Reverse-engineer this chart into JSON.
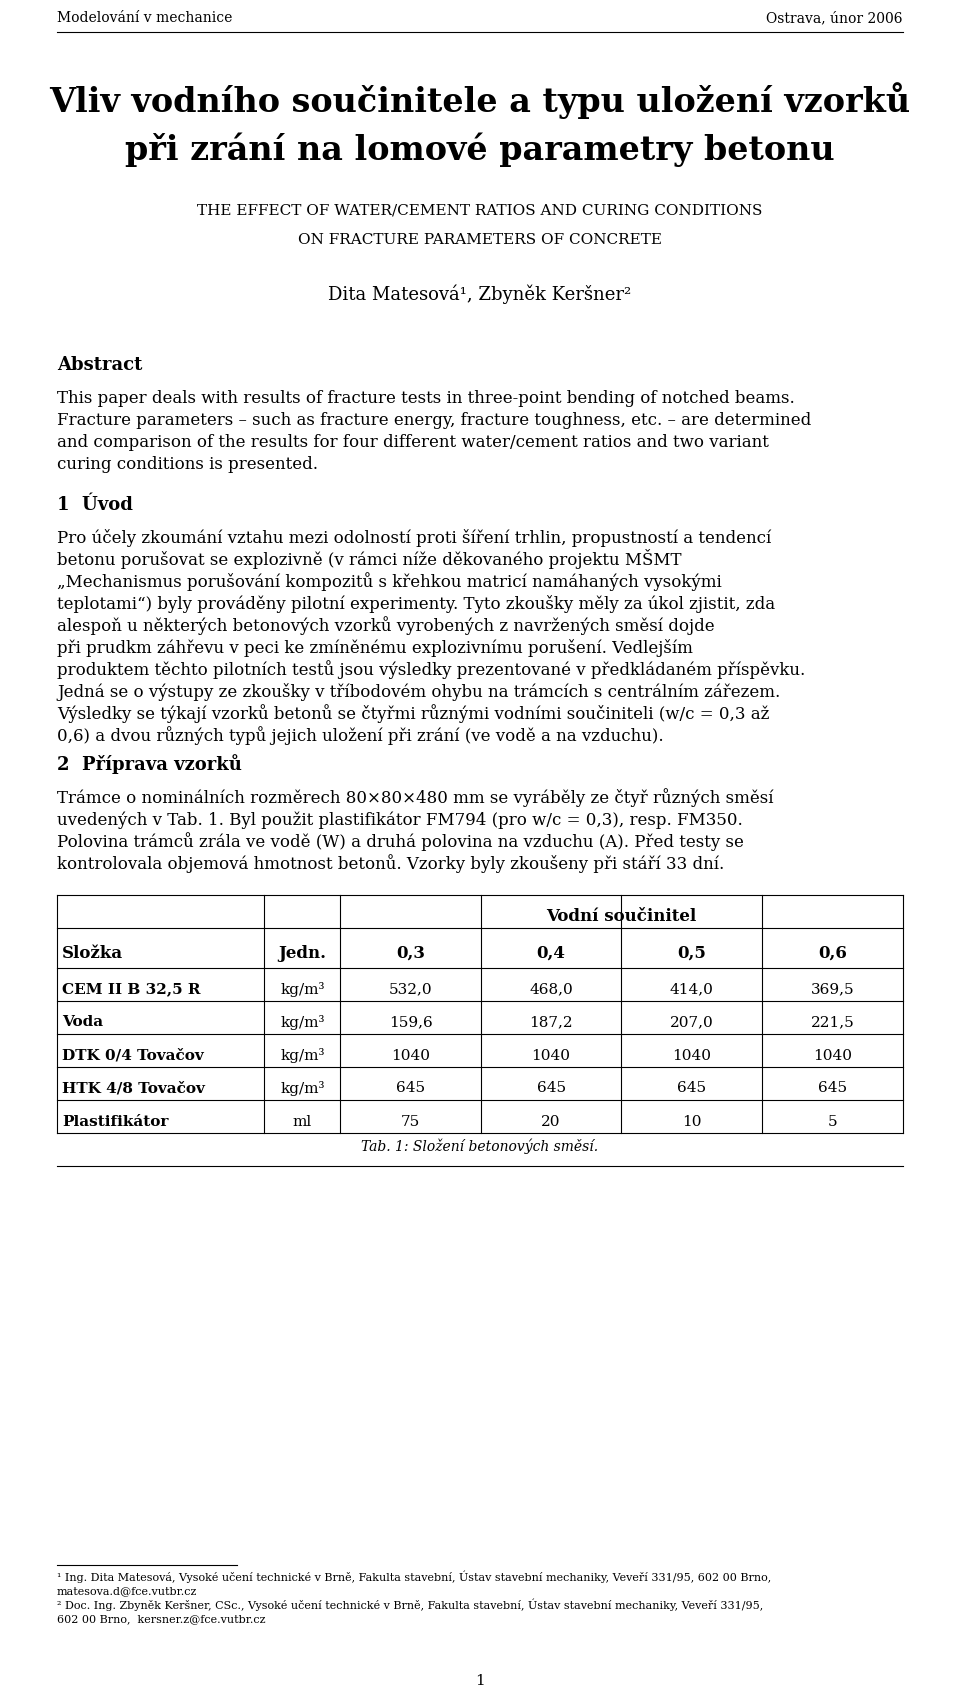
{
  "header_left": "Modelování v mechanice",
  "header_right": "Ostrava, únor 2006",
  "title_line1": "Vliv vodního součinitele a typu uložení vzorků",
  "title_line2": "při zrání na lomové parametry betonu",
  "subtitle_line1": "The effect of water/cement ratios and curing conditions",
  "subtitle_line2": "on fracture parameters of concrete",
  "authors": "Dita Matesová¹, Zbyněk Keršner²",
  "abstract_title": "Abstract",
  "abstract_lines": [
    "This paper deals with results of fracture tests in three-point bending of notched beams.",
    "Fracture parameters – such as fracture energy, fracture toughness, etc. – are determined",
    "and comparison of the results for four different water/cement ratios and two variant",
    "curing conditions is presented."
  ],
  "section1_title": "1  Úvod",
  "section1_lines": [
    "Pro účely zkoumání vztahu mezi odolností proti šíření trhlin, propustností a tendencí",
    "betonu porušovat se explozivně (v rámci níže děkovaného projektu MŠMT",
    "„Mechanismus porušování kompozitů s křehkou matricí namáhaných vysokými",
    "teplotami“) byly prováděny pilotní experimenty. Tyto zkoušky měly za úkol zjistit, zda",
    "alespoň u některých betonových vzorků vyrobených z navržených směsí dojde",
    "při prudkm záhřevu v peci ke zmíněnému explozivnímu porušení. Vedlejším",
    "produktem těchto pilotních testů jsou výsledky prezentované v předkládaném příspěvku.",
    "Jedná se o výstupy ze zkoušky v tříbodovém ohybu na trámcích s centrálním zářezem.",
    "Výsledky se týkají vzorků betonů se čtyřmi různými vodními součiniteli (w/c = 0,3 až",
    "0,6) a dvou různých typů jejich uložení při zrání (ve vodě a na vzduchu)."
  ],
  "section2_title": "2  Příprava vzorků",
  "section2_lines": [
    "Trámce o nominálních rozměrech 80×80×480 mm se vyráběly ze čtyř různých směsí",
    "uvedených v Tab. 1. Byl použit plastifikátor FM794 (pro w/c = 0,3), resp. FM350.",
    "Polovina trámců zrála ve vodě (W) a druhá polovina na vzduchu (A). Před testy se",
    "kontrolovala objemová hmotnost betonů. Vzorky byly zkoušeny při stáří 33 dní."
  ],
  "table_header_main": "Vodní součinitel",
  "table_col_headers": [
    "Složka",
    "Jedn.",
    "0,3",
    "0,4",
    "0,5",
    "0,6"
  ],
  "table_rows": [
    [
      "CEM II B 32,5 R",
      "kg/m³",
      "532,0",
      "468,0",
      "414,0",
      "369,5"
    ],
    [
      "Voda",
      "kg/m³",
      "159,6",
      "187,2",
      "207,0",
      "221,5"
    ],
    [
      "DTK 0/4 Tovačov",
      "kg/m³",
      "1040",
      "1040",
      "1040",
      "1040"
    ],
    [
      "HTK 4/8 Tovačov",
      "kg/m³",
      "645",
      "645",
      "645",
      "645"
    ],
    [
      "Plastifikátor",
      "ml",
      "75",
      "20",
      "10",
      "5"
    ]
  ],
  "table_caption": "Tab. 1: Složení betonových směsí.",
  "footnote1_line1": "¹ Ing. Dita Matesová, Vysoké učení technické v Brně, Fakulta stavební, Ústav stavební mechaniky, Veveří 331/95, 602 00 Brno,",
  "footnote1_line2": "matesova.d@fce.vutbr.cz",
  "footnote2_line1": "² Doc. Ing. Zbyněk Keršner, CSc., Vysoké učení technické v Brně, Fakulta stavební, Ústav stavební mechaniky, Veveří 331/95,",
  "footnote2_line2": "602 00 Brno,  kersner.z@fce.vutbr.cz",
  "page_number": "1",
  "bg_color": "#ffffff"
}
